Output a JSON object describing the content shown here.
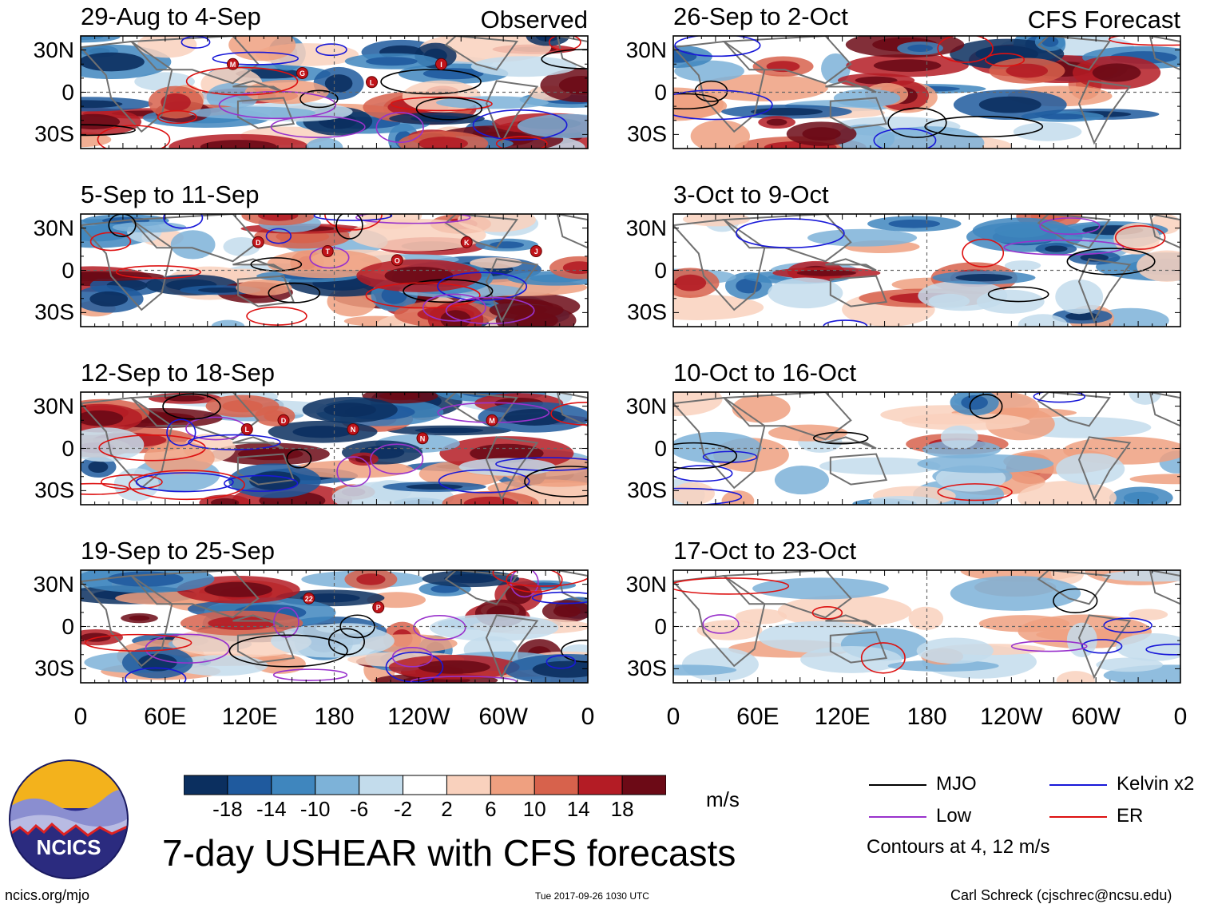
{
  "chart_data": {
    "type": "heatmap",
    "title": "7-day USHEAR with CFS forecasts",
    "units": "m/s",
    "variable": "USHEAR",
    "columns": [
      {
        "header": "Observed",
        "panels": [
          "29-Aug to 4-Sep",
          "5-Sep to 11-Sep",
          "12-Sep to 18-Sep",
          "19-Sep to 25-Sep"
        ]
      },
      {
        "header": "CFS Forecast",
        "panels": [
          "26-Sep to 2-Oct",
          "3-Oct to 9-Oct",
          "10-Oct to 16-Oct",
          "17-Oct to 23-Oct"
        ]
      }
    ],
    "y_ticks": [
      "30N",
      "0",
      "30S"
    ],
    "y_values": [
      30,
      0,
      -30
    ],
    "ylim": [
      -40,
      40
    ],
    "x_ticks": [
      "0",
      "60E",
      "120E",
      "180",
      "120W",
      "60W",
      "0"
    ],
    "x_values": [
      0,
      60,
      120,
      180,
      240,
      300,
      360
    ],
    "xlim": [
      0,
      360
    ],
    "colorbar": {
      "ticks": [
        "-18",
        "-14",
        "-10",
        "-6",
        "-2",
        "2",
        "6",
        "10",
        "14",
        "18"
      ],
      "tick_values": [
        -18,
        -14,
        -10,
        -6,
        -2,
        2,
        6,
        10,
        14,
        18
      ],
      "colors": [
        "#0b2f5f",
        "#1f5a9e",
        "#3f86be",
        "#7db2d8",
        "#c3dcec",
        "#ffffff",
        "#f9d1bd",
        "#efa080",
        "#d7624c",
        "#b41c25",
        "#6c0a16"
      ]
    },
    "legend": {
      "entries": [
        {
          "label": "MJO",
          "color": "#000000"
        },
        {
          "label": "Kelvin x2",
          "color": "#1818d8"
        },
        {
          "label": "Low",
          "color": "#9932cc"
        },
        {
          "label": "ER",
          "color": "#dd1111"
        }
      ],
      "note": "Contours at 4, 12 m/s"
    },
    "storm_markers": [
      {
        "panel": 0,
        "labels": [
          "M",
          "G",
          "L",
          "I"
        ]
      },
      {
        "panel": 1,
        "labels": [
          "D",
          "T",
          "O",
          "K",
          "J"
        ]
      },
      {
        "panel": 2,
        "labels": [
          "D",
          "N",
          "N",
          "M",
          "L"
        ]
      },
      {
        "panel": 3,
        "labels": [
          "22",
          "P"
        ]
      }
    ]
  },
  "footer": {
    "logo_text": "NCICS",
    "url": "ncics.org/mjo",
    "timestamp": "Tue 2017-09-26 1030 UTC",
    "credit": "Carl Schreck (cjschrec@ncsu.edu)"
  }
}
